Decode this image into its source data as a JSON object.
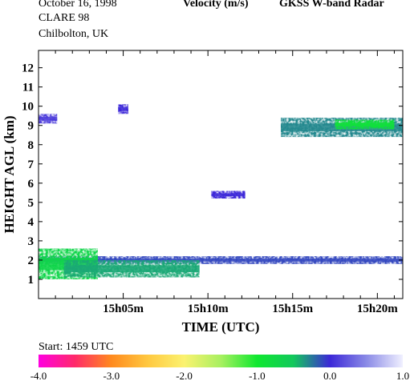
{
  "header": {
    "date": "October  16, 1998",
    "campaign": "CLARE 98",
    "site": "Chilbolton, UK",
    "quantity": "Velocity (m/s)",
    "instrument": "GKSS  W-band Radar"
  },
  "start_label": "Start: 1459 UTC",
  "chart_data": {
    "type": "heatmap",
    "title": "Velocity (m/s)",
    "xlabel": "TIME (UTC)",
    "ylabel": "HEIGHT AGL (km)",
    "x_unit": "minutes after 15h00 UTC",
    "xlim": [
      0.0,
      21.5
    ],
    "ylim": [
      0,
      12.9
    ],
    "x_ticks": [
      {
        "value": 5,
        "label": "15h05m"
      },
      {
        "value": 10,
        "label": "15h10m"
      },
      {
        "value": 15,
        "label": "15h15m"
      },
      {
        "value": 20,
        "label": "15h20m"
      }
    ],
    "y_ticks": [
      1,
      2,
      3,
      4,
      5,
      6,
      7,
      8,
      9,
      10,
      11,
      12
    ],
    "grid": false,
    "colorbar": {
      "min": -4.0,
      "max": 1.0,
      "tick_labels": [
        "-4.0",
        "-3.0",
        "-2.0",
        "-1.0",
        "0.0",
        "1.0"
      ],
      "tick_values": [
        -4.0,
        -3.0,
        -2.0,
        -1.0,
        0.0,
        1.0
      ],
      "stops": [
        {
          "value": -4.0,
          "color": "#ff00e0"
        },
        {
          "value": -3.5,
          "color": "#ff2a6a"
        },
        {
          "value": -3.0,
          "color": "#ff8a1e"
        },
        {
          "value": -2.5,
          "color": "#ffc840"
        },
        {
          "value": -2.0,
          "color": "#fbf270"
        },
        {
          "value": -1.5,
          "color": "#a8f060"
        },
        {
          "value": -1.0,
          "color": "#10e830"
        },
        {
          "value": -0.5,
          "color": "#12c85c"
        },
        {
          "value": 0.0,
          "color": "#3c28d8"
        },
        {
          "value": 0.5,
          "color": "#8a8ae6"
        },
        {
          "value": 1.0,
          "color": "#f0f0ff"
        }
      ]
    },
    "echo_regions": [
      {
        "name": "low-cloud-layer",
        "x": [
          0.0,
          21.5
        ],
        "y": [
          1.8,
          2.2
        ],
        "velocity": -0.1
      },
      {
        "name": "low-cloud-enhanced",
        "x": [
          0.0,
          3.5
        ],
        "y": [
          1.0,
          2.6
        ],
        "velocity": -0.7
      },
      {
        "name": "low-cloud-fallstreaks",
        "x": [
          1.5,
          9.5
        ],
        "y": [
          1.1,
          2.0
        ],
        "velocity": -0.4
      },
      {
        "name": "cirrus-early",
        "x": [
          0.0,
          1.1
        ],
        "y": [
          9.1,
          9.6
        ],
        "velocity": 0.1
      },
      {
        "name": "cirrus-patch-5min",
        "x": [
          4.7,
          5.3
        ],
        "y": [
          9.6,
          10.1
        ],
        "velocity": 0.0
      },
      {
        "name": "mid-cloud-11min",
        "x": [
          10.2,
          12.2
        ],
        "y": [
          5.2,
          5.6
        ],
        "velocity": 0.0
      },
      {
        "name": "cirrus-late",
        "x": [
          14.3,
          21.5
        ],
        "y": [
          8.4,
          9.4
        ],
        "velocity": -0.3
      },
      {
        "name": "cirrus-late-core",
        "x": [
          17.5,
          21.0
        ],
        "y": [
          8.8,
          9.3
        ],
        "velocity": -0.9
      }
    ]
  }
}
